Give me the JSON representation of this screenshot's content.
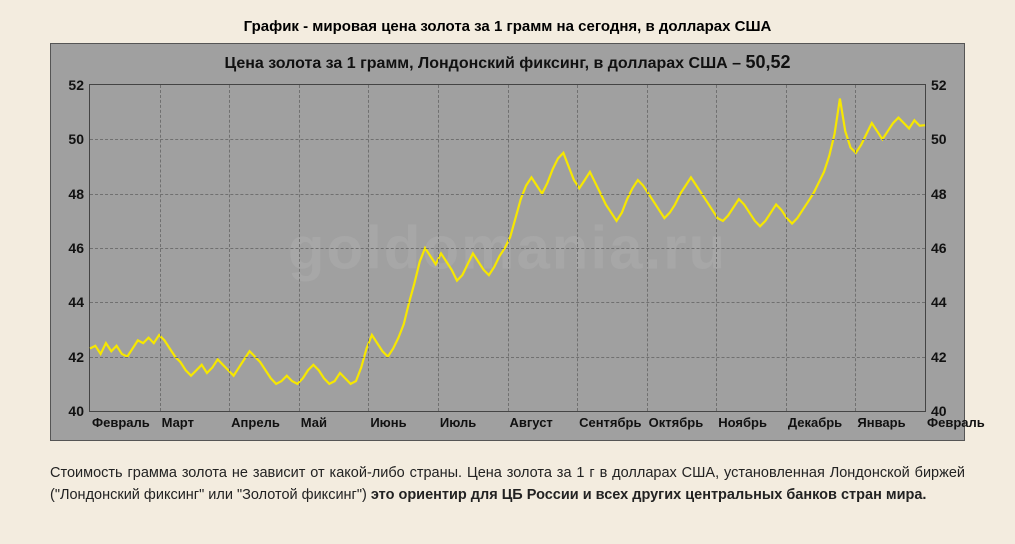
{
  "outer_title": "График - мировая цена золота за 1 грамм на сегодня, в долларах США",
  "chart": {
    "title_prefix": "Цена золота за 1 грамм,  Лондонский фиксинг,  в долларах США  –  ",
    "title_value": "50,52",
    "type": "line",
    "watermark": "goldomania.ru",
    "line_color": "#f6e701",
    "line_width": 2.2,
    "background_color": "#a0a0a0",
    "grid_color": "#707070",
    "ylim": [
      40,
      52
    ],
    "ytick_step": 2,
    "yticks": [
      40,
      42,
      44,
      46,
      48,
      50,
      52
    ],
    "xticks": [
      "Февраль",
      "Март",
      "Апрель",
      "Май",
      "Июнь",
      "Июль",
      "Август",
      "Сентябрь",
      "Октябрь",
      "Ноябрь",
      "Декабрь",
      "Январь",
      "Февраль"
    ],
    "series": [
      42.3,
      42.4,
      42.1,
      42.5,
      42.2,
      42.4,
      42.1,
      42.0,
      42.3,
      42.6,
      42.5,
      42.7,
      42.5,
      42.8,
      42.6,
      42.3,
      42.0,
      41.8,
      41.5,
      41.3,
      41.5,
      41.7,
      41.4,
      41.6,
      41.9,
      41.7,
      41.5,
      41.3,
      41.6,
      41.9,
      42.2,
      42.0,
      41.8,
      41.5,
      41.2,
      41.0,
      41.1,
      41.3,
      41.1,
      41.0,
      41.2,
      41.5,
      41.7,
      41.5,
      41.2,
      41.0,
      41.1,
      41.4,
      41.2,
      41.0,
      41.1,
      41.6,
      42.3,
      42.8,
      42.5,
      42.2,
      42.0,
      42.3,
      42.7,
      43.2,
      44.0,
      44.7,
      45.5,
      46.0,
      45.7,
      45.4,
      45.8,
      45.5,
      45.2,
      44.8,
      45.0,
      45.4,
      45.8,
      45.5,
      45.2,
      45.0,
      45.3,
      45.7,
      46.0,
      46.4,
      47.1,
      47.8,
      48.3,
      48.6,
      48.3,
      48.0,
      48.4,
      48.9,
      49.3,
      49.5,
      49.0,
      48.5,
      48.2,
      48.5,
      48.8,
      48.4,
      48.0,
      47.6,
      47.3,
      47.0,
      47.3,
      47.8,
      48.2,
      48.5,
      48.3,
      48.0,
      47.7,
      47.4,
      47.1,
      47.3,
      47.6,
      48.0,
      48.3,
      48.6,
      48.3,
      48.0,
      47.7,
      47.4,
      47.1,
      47.0,
      47.2,
      47.5,
      47.8,
      47.6,
      47.3,
      47.0,
      46.8,
      47.0,
      47.3,
      47.6,
      47.4,
      47.1,
      46.9,
      47.1,
      47.4,
      47.7,
      48.0,
      48.4,
      48.8,
      49.4,
      50.2,
      51.5,
      50.3,
      49.7,
      49.5,
      49.8,
      50.2,
      50.6,
      50.3,
      50.0,
      50.3,
      50.6,
      50.8,
      50.6,
      50.4,
      50.7,
      50.5,
      50.52
    ]
  },
  "caption": {
    "part1": "Стоимость грамма золота не зависит от какой-либо страны. Цена золота за 1 г в долларах США, установленная Лондонской биржей (\"Лондонский фиксинг\" или \"Золотой фиксинг\") ",
    "part2_bold": "это ориентир для ЦБ России и всех других центральных банков стран мира."
  }
}
